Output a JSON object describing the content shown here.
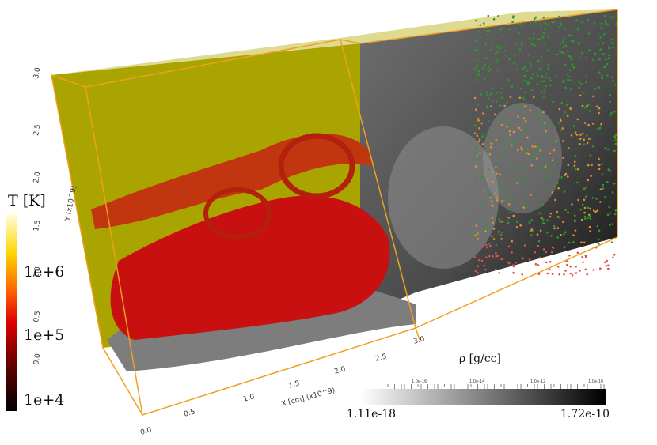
{
  "temperature_colorbar": {
    "title": "T [K]",
    "labels": [
      "1e+6",
      "1e+5",
      "1e+4"
    ]
  },
  "density_colorbar": {
    "title": "ρ [g/cc]",
    "min_label": "1.11e-18",
    "max_label": "1.72e-10",
    "minor_labels": [
      "1.0e-16",
      "1.0e-14",
      "1.0e-12",
      "1.0e-10"
    ]
  },
  "axes": {
    "y_title": "Y (x10^9)",
    "y_ticks": [
      "0.0",
      "0.5",
      "1.0",
      "1.5",
      "2.0",
      "2.5",
      "3.0"
    ],
    "x_title": "X [cm] (x10^9)",
    "x_ticks": [
      "0.0",
      "0.5",
      "1.0",
      "1.5",
      "2.0",
      "2.5",
      "3.0"
    ]
  }
}
